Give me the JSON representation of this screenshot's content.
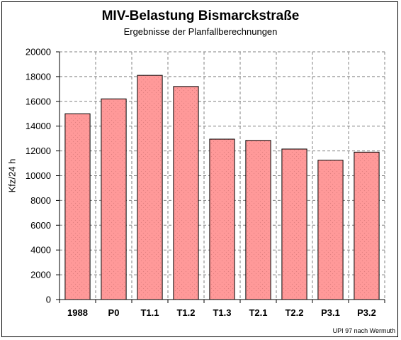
{
  "chart_data": {
    "type": "bar",
    "title": "MIV-Belastung Bismarckstraße",
    "subtitle": "Ergebnisse der Planfallberechnungen",
    "xlabel": "",
    "ylabel": "Kfz/24 h",
    "categories": [
      "1988",
      "P0",
      "T1.1",
      "T1.2",
      "T1.3",
      "T2.1",
      "T2.2",
      "P3.1",
      "P3.2"
    ],
    "values": [
      15000,
      16200,
      18100,
      17200,
      12950,
      12850,
      12150,
      11250,
      11900
    ],
    "ylim": [
      0,
      20000
    ],
    "yticks": [
      "0",
      "2000",
      "4000",
      "6000",
      "8000",
      "10000",
      "12000",
      "14000",
      "16000",
      "18000",
      "20000"
    ],
    "grid": "dashed horizontal and vertical",
    "bar_color": "#ff9999",
    "legend": "none",
    "credit": "UPI 97 nach Wermuth"
  }
}
